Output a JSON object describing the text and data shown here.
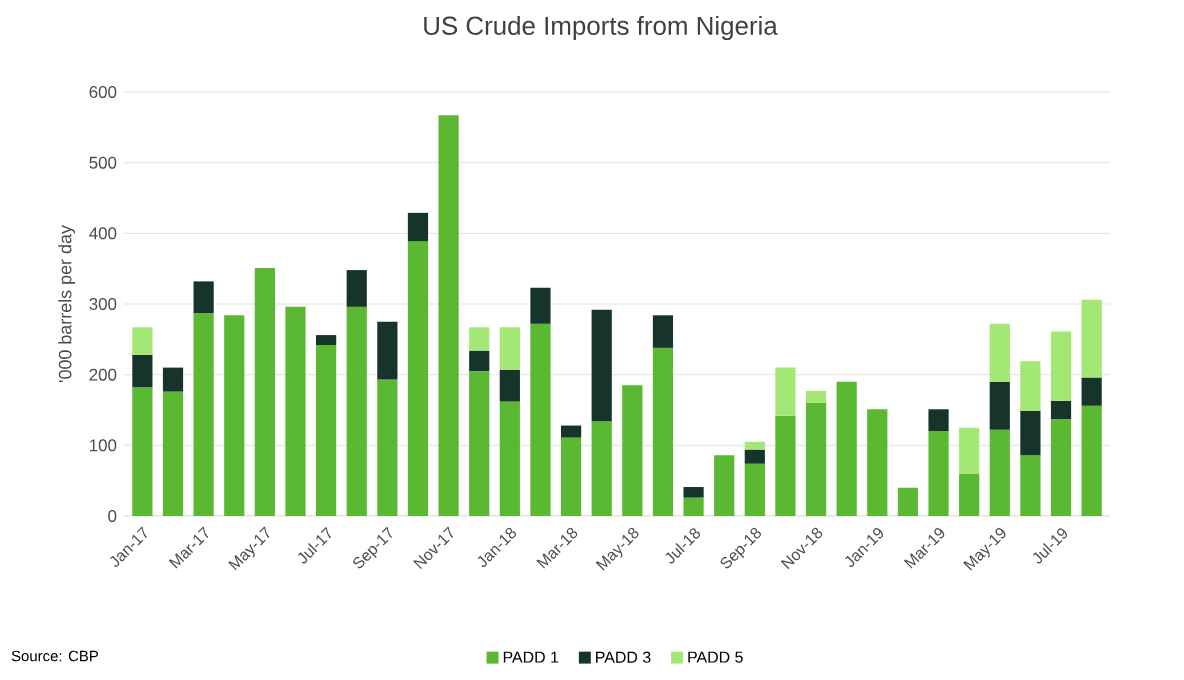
{
  "chart_data": {
    "type": "bar",
    "stacked": true,
    "title": "US Crude Imports from Nigeria",
    "ylabel": "'000 barrels per day",
    "annotations": [
      "Source: CBP"
    ],
    "categories": [
      "Jan-17",
      null,
      "Mar-17",
      null,
      "May-17",
      null,
      "Jul-17",
      null,
      "Sep-17",
      null,
      "Nov-17",
      null,
      "Jan-18",
      null,
      "Mar-18",
      null,
      "May-18",
      null,
      "Jul-18",
      null,
      "Sep-18",
      null,
      "Nov-18",
      null,
      "Jan-19",
      null,
      "Mar-19",
      null,
      "May-19",
      null,
      "Jul-19",
      null
    ],
    "series": [
      {
        "name": "PADD 1",
        "color": "#5bb832",
        "values": [
          182,
          176,
          287,
          284,
          351,
          296,
          242,
          296,
          193,
          389,
          567,
          205,
          162,
          272,
          111,
          134,
          185,
          238,
          26,
          86,
          74,
          142,
          160,
          190,
          151,
          40,
          120,
          60,
          122,
          86,
          137,
          156
        ]
      },
      {
        "name": "PADD 3",
        "color": "#17342a",
        "values": [
          46,
          34,
          45,
          null,
          null,
          null,
          14,
          52,
          82,
          40,
          null,
          29,
          45,
          51,
          17,
          158,
          null,
          46,
          15,
          null,
          20,
          null,
          null,
          null,
          null,
          null,
          31,
          null,
          68,
          63,
          26,
          40
        ]
      },
      {
        "name": "PADD 5",
        "color": "#a3e874",
        "values": [
          39,
          null,
          null,
          null,
          null,
          null,
          null,
          null,
          null,
          null,
          null,
          33,
          60,
          null,
          null,
          null,
          null,
          null,
          null,
          null,
          11,
          68,
          17,
          null,
          null,
          null,
          null,
          65,
          82,
          70,
          98,
          110
        ]
      }
    ],
    "ylim": [
      0,
      600
    ],
    "yticks": [
      0,
      100,
      200,
      300,
      400,
      500,
      600
    ],
    "grid": "y",
    "legend": "bottom"
  }
}
